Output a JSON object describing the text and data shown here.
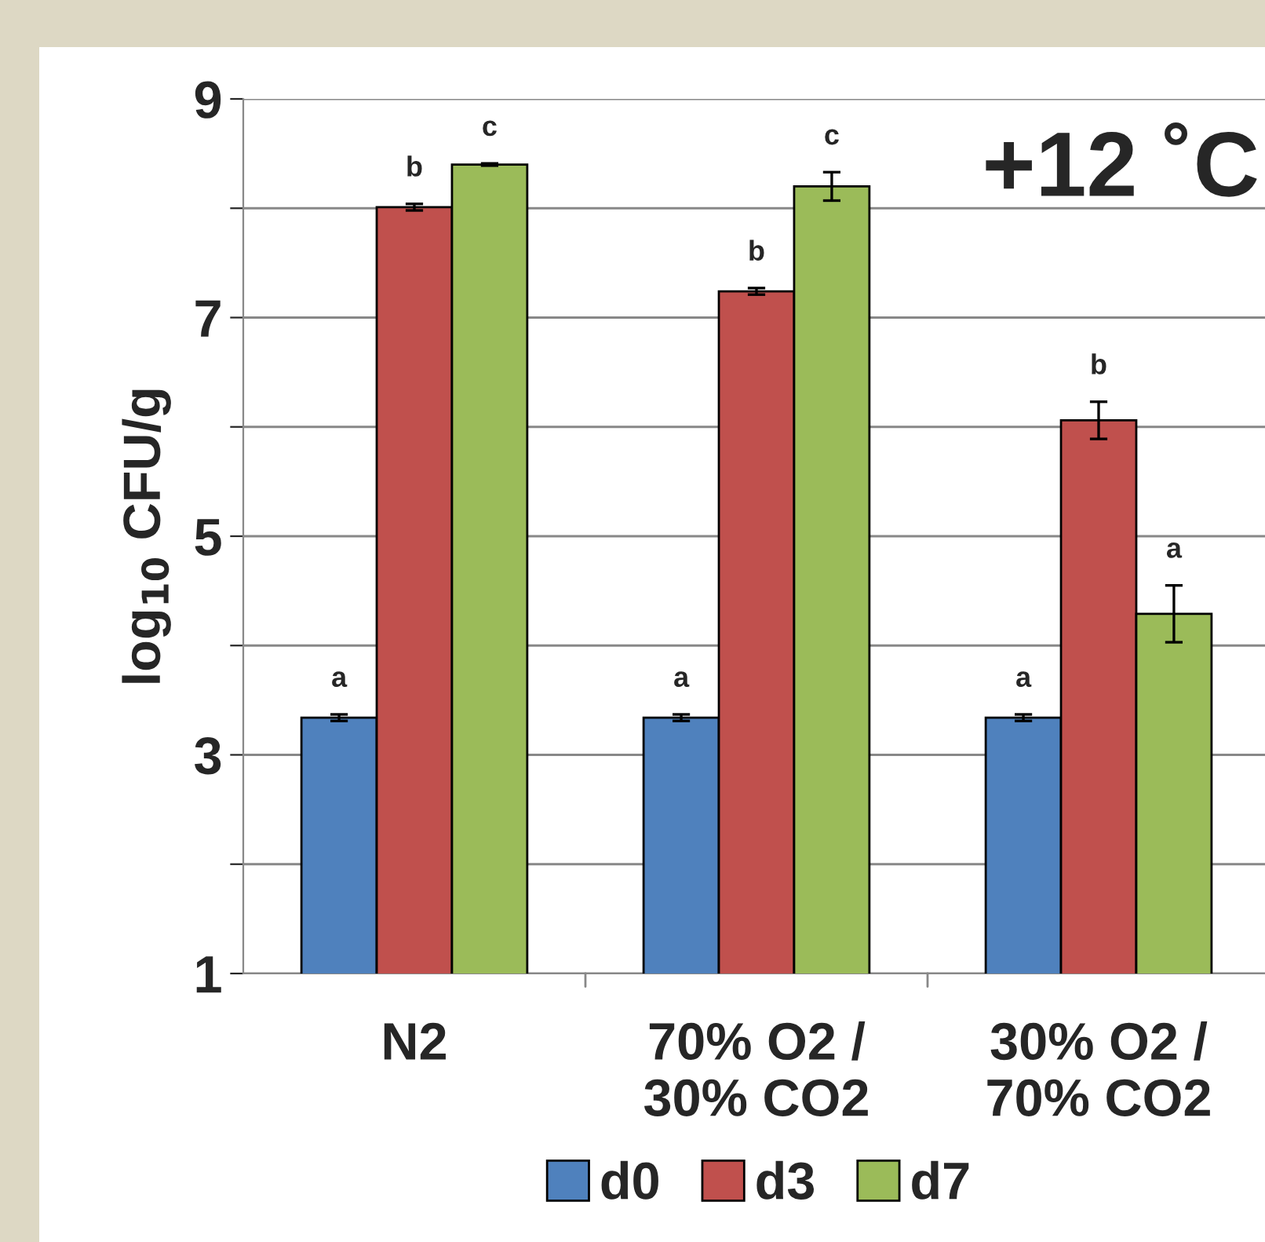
{
  "chart_data": {
    "type": "bar",
    "ylabel": "log$_{10}$ CFU/g",
    "annotations": [
      "+12 ˚C"
    ],
    "categories": [
      "N2",
      "70% O2 /\n30% CO2",
      "30% O2 /\n70% CO2"
    ],
    "series": [
      {
        "name": "d0",
        "color": "#4f81bd",
        "values": [
          3.34,
          3.34,
          3.34
        ],
        "errors": [
          0.03,
          0.03,
          0.03
        ],
        "value_labels": [
          "a",
          "a",
          "a"
        ]
      },
      {
        "name": "d3",
        "color": "#c0504d",
        "values": [
          8.01,
          7.24,
          6.06
        ],
        "errors": [
          0.03,
          0.03,
          0.17
        ],
        "value_labels": [
          "b",
          "b",
          "b"
        ]
      },
      {
        "name": "d7",
        "color": "#9bbb59",
        "values": [
          8.4,
          8.2,
          4.29
        ],
        "errors": [
          0.01,
          0.13,
          0.26
        ],
        "value_labels": [
          "c",
          "c",
          "a"
        ]
      }
    ],
    "ylim": [
      1,
      9
    ],
    "yticks": [
      1,
      {
        "value": 2,
        "label": null
      },
      3,
      {
        "value": 4,
        "label": null
      },
      5,
      {
        "value": 6,
        "label": null
      },
      7,
      {
        "value": 8,
        "label": null
      },
      9
    ],
    "grid": "y",
    "legend": "bottom"
  }
}
